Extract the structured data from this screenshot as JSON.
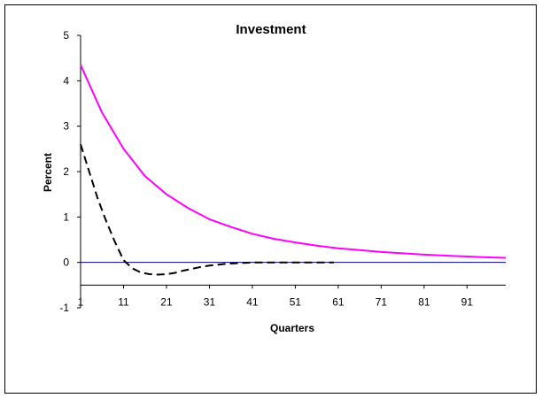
{
  "chart_data": {
    "type": "line",
    "title": "Investment",
    "xlabel": "Quarters",
    "ylabel": "Percent",
    "xlim": [
      1,
      100
    ],
    "ylim": [
      -1,
      5
    ],
    "x_ticks": [
      1,
      11,
      21,
      31,
      41,
      51,
      61,
      71,
      81,
      91
    ],
    "y_ticks": [
      -1,
      0,
      1,
      2,
      3,
      4,
      5
    ],
    "grid": false,
    "legend": "none",
    "reference_line": {
      "y": 0,
      "color": "#000080"
    },
    "series": [
      {
        "color": "#ff00ff",
        "style": "solid",
        "x": [
          1,
          6,
          11,
          16,
          21,
          26,
          31,
          36,
          41,
          46,
          51,
          56,
          61,
          66,
          71,
          76,
          81,
          86,
          91,
          96,
          100
        ],
        "y": [
          4.35,
          3.3,
          2.5,
          1.9,
          1.5,
          1.2,
          0.95,
          0.78,
          0.63,
          0.52,
          0.44,
          0.37,
          0.31,
          0.27,
          0.23,
          0.2,
          0.17,
          0.15,
          0.13,
          0.11,
          0.1
        ]
      },
      {
        "color": "#000000",
        "style": "dashed",
        "x": [
          1,
          3,
          5,
          7,
          9,
          11,
          13,
          15,
          17,
          19,
          21,
          23,
          25,
          27,
          29,
          31,
          33,
          35,
          37,
          39,
          41,
          43,
          45,
          50,
          55,
          60
        ],
        "y": [
          2.6,
          2.0,
          1.4,
          0.9,
          0.45,
          0.05,
          -0.13,
          -0.22,
          -0.26,
          -0.27,
          -0.26,
          -0.23,
          -0.18,
          -0.14,
          -0.1,
          -0.07,
          -0.05,
          -0.03,
          -0.02,
          -0.01,
          0.0,
          0.0,
          0.0,
          0.0,
          0.0,
          0.0
        ]
      }
    ]
  }
}
